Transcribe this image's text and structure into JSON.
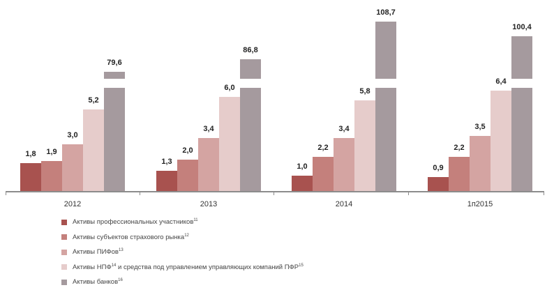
{
  "chart_data": {
    "type": "bar",
    "title": "",
    "xlabel": "",
    "ylabel": "",
    "categories": [
      "2012",
      "2013",
      "2014",
      "1п2015"
    ],
    "series": [
      {
        "name": "Активы профессиональных участников",
        "footnote": "11",
        "color": "#a8524f",
        "values": [
          1.8,
          1.3,
          1.0,
          0.9
        ]
      },
      {
        "name": "Активы субъектов страхового рынка",
        "footnote": "12",
        "color": "#c4807c",
        "values": [
          1.9,
          2.0,
          2.2,
          2.2
        ]
      },
      {
        "name": "Активы ПИФов",
        "footnote": "13",
        "color": "#d4a4a2",
        "values": [
          3.0,
          3.4,
          3.4,
          3.5
        ]
      },
      {
        "name": "Активы НПФ и средства под управлением управляющих компаний ПФР",
        "footnote": "14,15",
        "color": "#e6cccb",
        "values": [
          5.2,
          6.0,
          5.8,
          6.4
        ]
      },
      {
        "name": "Активы банков",
        "footnote": "16",
        "color": "#a59a9e",
        "values": [
          79.6,
          86.8,
          108.7,
          100.4
        ]
      }
    ],
    "value_labels": [
      [
        "1,8",
        "1,9",
        "3,0",
        "5,2",
        "79,6"
      ],
      [
        "1,3",
        "2,0",
        "3,4",
        "6,0",
        "86,8"
      ],
      [
        "1,0",
        "2,2",
        "3,4",
        "5,8",
        "108,7"
      ],
      [
        "0,9",
        "2,2",
        "3,5",
        "6,4",
        "100,4"
      ]
    ],
    "broken_axis_series": "Активы банков",
    "grid": false,
    "legend_position": "bottom-left"
  },
  "legend": {
    "items": [
      {
        "label": "Активы профессиональных участников",
        "sup": "11"
      },
      {
        "label": "Активы субъектов страхового рынка",
        "sup": "12"
      },
      {
        "label": "Активы ПИФов",
        "sup": "13"
      },
      {
        "label": "Активы НПФ",
        "sup": "14",
        "label_rest": " и средства под управлением управляющих компаний ПФР",
        "sup2": "15"
      },
      {
        "label": "Активы банков",
        "sup": "16"
      }
    ]
  }
}
